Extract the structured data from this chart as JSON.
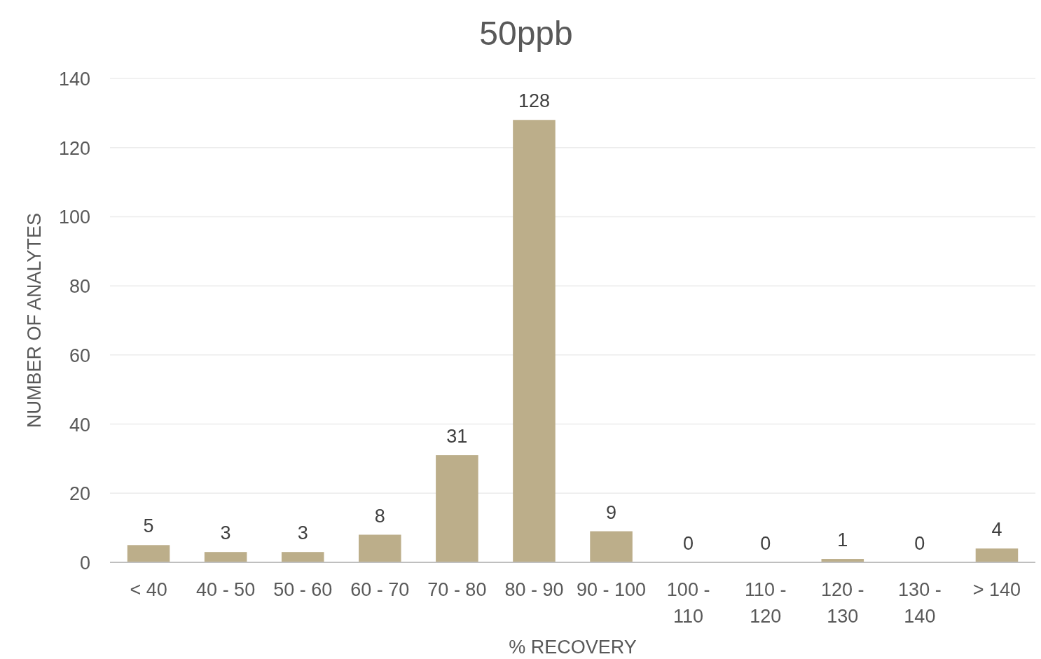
{
  "chart_data": {
    "type": "bar",
    "title": "50ppb",
    "xlabel": "% RECOVERY",
    "ylabel": "NUMBER OF ANALYTES",
    "categories": [
      "< 40",
      "40 - 50",
      "50 - 60",
      "60 - 70",
      "70 - 80",
      "80 - 90",
      "90 - 100",
      "100 - 110",
      "110 - 120",
      "120 - 130",
      "130 - 140",
      "> 140"
    ],
    "values": [
      5,
      3,
      3,
      8,
      31,
      128,
      9,
      0,
      0,
      1,
      0,
      4
    ],
    "color": "#bcae8a",
    "ylim": [
      0,
      140
    ],
    "yticks": [
      0,
      20,
      40,
      60,
      80,
      100,
      120,
      140
    ],
    "grid": "y",
    "data_labels": true
  }
}
